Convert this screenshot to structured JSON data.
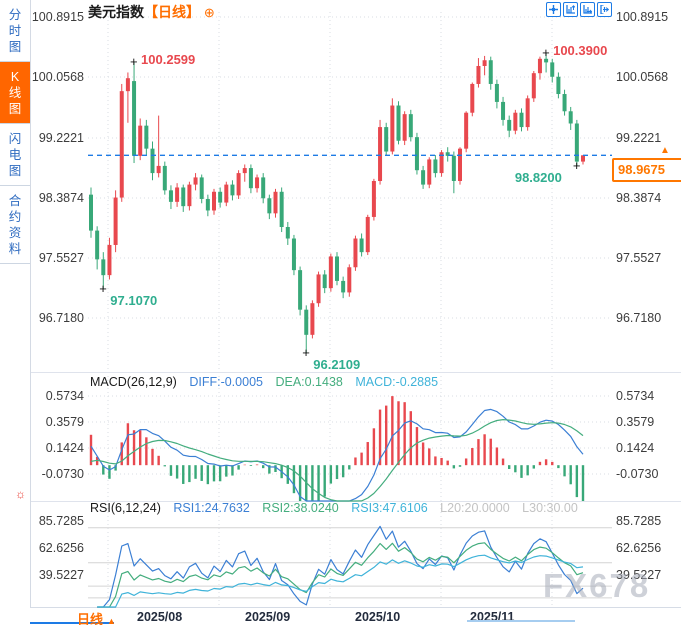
{
  "header": {
    "title": "美元指数",
    "period": "【日线】"
  },
  "sidebar": {
    "items": [
      {
        "label": "分时图",
        "active": false
      },
      {
        "label": "K线图",
        "active": true
      },
      {
        "label": "闪电图",
        "active": false
      },
      {
        "label": "合约资料",
        "active": false
      }
    ]
  },
  "toolbar": {
    "icons": [
      "crosshair",
      "zoom-vertical",
      "zoom-horizontal",
      "pan-out"
    ]
  },
  "main_chart": {
    "y_ticks": [
      "100.8915",
      "100.0568",
      "99.2221",
      "98.3874",
      "97.5527",
      "96.7180"
    ],
    "current_price": "98.9675",
    "current_price_value": 98.9675,
    "annotations": [
      {
        "index": 2,
        "text": "97.1070",
        "color": "green",
        "type": "low",
        "side": "right"
      },
      {
        "index": 7,
        "text": "100.2599",
        "color": "red",
        "type": "high",
        "side": "right"
      },
      {
        "index": 35,
        "text": "96.2109",
        "color": "green",
        "type": "low",
        "side": "right"
      },
      {
        "index": 74,
        "text": "100.3900",
        "color": "red",
        "type": "high",
        "side": "right"
      },
      {
        "index": 79,
        "text": "98.8200",
        "color": "green",
        "type": "low",
        "side": "left"
      }
    ]
  },
  "macd_panel": {
    "title": "MACD(26,12,9)",
    "diff_label": "DIFF:-0.0005",
    "dea_label": "DEA:0.1438",
    "macd_label": "MACD:-0.2885",
    "y_ticks": [
      "0.5734",
      "0.3579",
      "0.1424",
      "-0.0730"
    ]
  },
  "rsi_panel": {
    "title": "RSI(6,12,24)",
    "rsi1_label": "RSI1:24.7632",
    "rsi2_label": "RSI2:38.0240",
    "rsi3_label": "RSI3:47.6106",
    "l20_label": "L20:20.0000",
    "l30_label": "L30:30.00",
    "y_ticks": [
      "85.7285",
      "62.6256",
      "39.5227"
    ]
  },
  "x_axis": {
    "labels": [
      "2025/08",
      "2025/09",
      "2025/10",
      "2025/11"
    ]
  },
  "bottom_bar": {
    "tab": "日线",
    "tab_arrow": "▲"
  },
  "watermark": "FX678",
  "colors": {
    "up": "#e8484e",
    "down": "#38a878",
    "accent_orange": "#ff6e00",
    "line_blue": "#3b7fd4",
    "line_green": "#44ad7e",
    "line_cyan": "#3fb3d9",
    "dashed_price_line": "#1d7be5",
    "grid": "#d9dde3"
  },
  "chart_data": {
    "type": "candlestick",
    "symbol": "美元指数",
    "period": "日线",
    "y_range": {
      "top_value": 100.8915,
      "value_per_tick": 0.8347
    },
    "macd_range": {
      "top_value": 0.5734,
      "tick_step": 0.2155
    },
    "rsi_range": {
      "top_value": 85.7285,
      "tick_step": 23.1029
    },
    "candles": [
      [
        98.42,
        98.52,
        97.82,
        97.92
      ],
      [
        97.92,
        97.98,
        97.38,
        97.52
      ],
      [
        97.52,
        97.62,
        97.107,
        97.3
      ],
      [
        97.3,
        97.82,
        97.24,
        97.72
      ],
      [
        97.72,
        98.48,
        97.62,
        98.38
      ],
      [
        98.38,
        99.96,
        98.32,
        99.86
      ],
      [
        99.86,
        100.12,
        99.42,
        100.04
      ],
      [
        100.0,
        100.2599,
        98.86,
        98.96
      ],
      [
        98.96,
        99.48,
        98.9,
        99.38
      ],
      [
        99.38,
        99.46,
        98.96,
        99.06
      ],
      [
        99.06,
        99.16,
        98.62,
        98.72
      ],
      [
        98.72,
        99.52,
        98.66,
        98.82
      ],
      [
        98.82,
        98.88,
        98.42,
        98.48
      ],
      [
        98.48,
        98.55,
        98.22,
        98.32
      ],
      [
        98.32,
        98.58,
        98.25,
        98.52
      ],
      [
        98.52,
        98.56,
        98.18,
        98.26
      ],
      [
        98.26,
        98.6,
        98.2,
        98.56
      ],
      [
        98.56,
        98.72,
        98.48,
        98.66
      ],
      [
        98.66,
        98.7,
        98.3,
        98.36
      ],
      [
        98.36,
        98.42,
        98.12,
        98.2
      ],
      [
        98.2,
        98.5,
        98.14,
        98.46
      ],
      [
        98.46,
        98.52,
        98.24,
        98.31
      ],
      [
        98.31,
        98.6,
        98.26,
        98.56
      ],
      [
        98.56,
        98.62,
        98.34,
        98.41
      ],
      [
        98.41,
        98.76,
        98.36,
        98.72
      ],
      [
        98.72,
        98.84,
        98.6,
        98.79
      ],
      [
        98.79,
        98.84,
        98.44,
        98.51
      ],
      [
        98.51,
        98.7,
        98.45,
        98.66
      ],
      [
        98.66,
        98.72,
        98.3,
        98.37
      ],
      [
        98.37,
        98.42,
        98.08,
        98.16
      ],
      [
        98.16,
        98.5,
        98.1,
        98.46
      ],
      [
        98.46,
        98.52,
        97.9,
        97.97
      ],
      [
        97.97,
        98.04,
        97.72,
        97.81
      ],
      [
        97.81,
        97.86,
        97.3,
        97.37
      ],
      [
        97.37,
        97.42,
        96.74,
        96.82
      ],
      [
        96.82,
        96.88,
        96.2109,
        96.47
      ],
      [
        96.47,
        96.95,
        96.42,
        96.91
      ],
      [
        96.91,
        97.35,
        96.86,
        97.31
      ],
      [
        97.31,
        97.37,
        97.05,
        97.12
      ],
      [
        97.12,
        97.6,
        97.07,
        97.56
      ],
      [
        97.56,
        97.62,
        97.16,
        97.22
      ],
      [
        97.22,
        97.28,
        96.98,
        97.06
      ],
      [
        97.06,
        97.45,
        97.0,
        97.41
      ],
      [
        97.41,
        97.85,
        97.36,
        97.81
      ],
      [
        97.81,
        97.88,
        97.56,
        97.62
      ],
      [
        97.62,
        98.14,
        97.58,
        98.11
      ],
      [
        98.11,
        98.64,
        98.06,
        98.61
      ],
      [
        98.61,
        99.46,
        98.56,
        99.36
      ],
      [
        99.36,
        99.42,
        98.96,
        99.02
      ],
      [
        99.02,
        99.76,
        98.98,
        99.66
      ],
      [
        99.66,
        99.72,
        99.12,
        99.17
      ],
      [
        99.17,
        99.58,
        99.11,
        99.54
      ],
      [
        99.54,
        99.6,
        99.16,
        99.22
      ],
      [
        99.22,
        99.28,
        98.7,
        98.76
      ],
      [
        98.76,
        98.82,
        98.5,
        98.56
      ],
      [
        98.56,
        98.94,
        98.51,
        98.91
      ],
      [
        98.91,
        98.97,
        98.66,
        98.72
      ],
      [
        98.72,
        99.04,
        98.67,
        99.01
      ],
      [
        99.01,
        99.08,
        98.88,
        98.96
      ],
      [
        98.96,
        99.02,
        98.44,
        98.61
      ],
      [
        98.61,
        99.08,
        98.56,
        99.06
      ],
      [
        99.06,
        99.58,
        99.01,
        99.56
      ],
      [
        99.56,
        99.98,
        99.51,
        99.96
      ],
      [
        99.96,
        100.32,
        99.91,
        100.21
      ],
      [
        100.21,
        100.35,
        100.08,
        100.29
      ],
      [
        100.29,
        100.34,
        99.88,
        99.96
      ],
      [
        99.96,
        100.02,
        99.62,
        99.71
      ],
      [
        99.71,
        99.78,
        99.38,
        99.46
      ],
      [
        99.46,
        99.52,
        99.22,
        99.31
      ],
      [
        99.31,
        99.6,
        99.26,
        99.56
      ],
      [
        99.56,
        99.62,
        99.3,
        99.36
      ],
      [
        99.36,
        99.8,
        99.31,
        99.76
      ],
      [
        99.76,
        100.14,
        99.71,
        100.11
      ],
      [
        100.11,
        100.34,
        100.02,
        100.31
      ],
      [
        100.31,
        100.39,
        100.12,
        100.26
      ],
      [
        100.26,
        100.31,
        99.98,
        100.06
      ],
      [
        100.06,
        100.12,
        99.76,
        99.82
      ],
      [
        99.82,
        99.88,
        99.52,
        99.58
      ],
      [
        99.58,
        99.64,
        99.32,
        99.41
      ],
      [
        99.41,
        99.46,
        98.82,
        98.88
      ],
      [
        98.88,
        98.9675,
        98.84,
        98.9675
      ]
    ]
  }
}
